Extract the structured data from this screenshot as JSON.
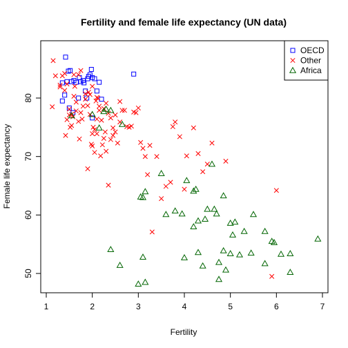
{
  "chart_data": {
    "type": "scatter",
    "title": "Fertility and female life expectancy (UN data)",
    "xlabel": "Fertility",
    "ylabel": "Female life expectancy",
    "xlim": [
      1,
      7
    ],
    "ylim": [
      50,
      85
    ],
    "xticks": [
      "1",
      "2",
      "3",
      "4",
      "5",
      "6",
      "7"
    ],
    "yticks": [
      "50",
      "60",
      "70",
      "80"
    ],
    "grid": false,
    "legend_position": "top-right",
    "series": [
      {
        "name": "OECD",
        "marker": "square",
        "color": "#0000ff",
        "x": [
          1.35,
          1.35,
          1.42,
          1.45,
          1.48,
          1.52,
          1.55,
          1.58,
          1.6,
          1.65,
          1.7,
          1.72,
          1.75,
          1.8,
          1.82,
          1.85,
          1.88,
          1.9,
          1.92,
          1.95,
          1.98,
          2.0,
          2.05,
          2.1,
          2.15,
          2.2,
          1.4,
          1.5,
          2.0,
          2.9
        ],
        "y": [
          82.6,
          79.5,
          87.0,
          82.8,
          84.6,
          84.7,
          82.8,
          77.5,
          83.0,
          82.7,
          80.0,
          83.5,
          82.8,
          83.0,
          82.6,
          81.2,
          80.0,
          83.3,
          83.7,
          84.0,
          84.9,
          76.6,
          83.3,
          81.2,
          82.7,
          79.8,
          80.5,
          78.3,
          83.5,
          84.1
        ]
      },
      {
        "name": "Other",
        "marker": "x",
        "color": "#ff0000",
        "x": [
          1.13,
          1.15,
          1.2,
          1.3,
          1.35,
          1.4,
          1.42,
          1.45,
          1.5,
          1.52,
          1.55,
          1.58,
          1.6,
          1.62,
          1.65,
          1.7,
          1.72,
          1.75,
          1.78,
          1.8,
          1.85,
          1.9,
          1.92,
          1.95,
          1.98,
          2.0,
          2.02,
          2.05,
          2.08,
          2.1,
          2.12,
          2.15,
          2.18,
          2.2,
          2.22,
          2.25,
          2.28,
          2.3,
          2.35,
          2.4,
          2.45,
          2.5,
          2.55,
          2.6,
          2.65,
          2.7,
          2.75,
          2.8,
          2.85,
          2.9,
          2.95,
          3.0,
          3.05,
          3.1,
          3.15,
          3.2,
          3.25,
          3.3,
          3.4,
          3.5,
          3.6,
          3.7,
          3.75,
          3.8,
          3.9,
          4.0,
          4.05,
          4.2,
          4.3,
          4.4,
          4.5,
          4.6,
          4.9,
          5.9,
          6.0,
          1.3,
          1.45,
          1.6,
          1.85,
          2.0,
          2.1,
          2.3,
          2.4,
          2.5,
          1.95,
          2.15,
          2.35,
          1.7,
          2.05,
          1.55,
          2.25,
          1.4,
          1.65,
          1.5,
          2.45,
          2.6,
          1.9,
          2.0,
          2.1,
          1.75
        ],
        "y": [
          78.5,
          86.4,
          83.8,
          82.2,
          83.8,
          84.2,
          73.6,
          76.3,
          78.1,
          75.0,
          77.2,
          76.8,
          80.3,
          82.0,
          79.3,
          76.0,
          73.0,
          77.5,
          76.4,
          78.6,
          79.8,
          67.9,
          81.0,
          77.2,
          72.1,
          71.8,
          75.0,
          70.7,
          79.5,
          73.9,
          80.0,
          77.9,
          70.1,
          76.2,
          72.0,
          78.2,
          74.2,
          70.9,
          65.1,
          72.9,
          73.6,
          77.1,
          72.3,
          75.9,
          77.9,
          77.9,
          75.1,
          75.0,
          75.2,
          77.6,
          77.5,
          78.3,
          72.4,
          71.4,
          70.0,
          66.9,
          71.9,
          57.1,
          70.0,
          62.8,
          64.9,
          65.6,
          75.1,
          75.9,
          73.4,
          64.4,
          70.1,
          74.9,
          70.5,
          67.4,
          68.7,
          72.3,
          69.2,
          49.5,
          64.2,
          81.9,
          82.4,
          84.0,
          80.7,
          82.0,
          80.1,
          79.1,
          76.6,
          74.2,
          80.6,
          78.6,
          77.4,
          84.0,
          74.6,
          75.3,
          73.1,
          81.3,
          77.8,
          77.1,
          74.9,
          79.4,
          78.7,
          73.9,
          76.4,
          84.7
        ]
      },
      {
        "name": "Africa",
        "marker": "triangle",
        "color": "#006400",
        "x": [
          1.55,
          2.0,
          2.15,
          2.25,
          2.3,
          2.4,
          2.4,
          2.6,
          2.65,
          3.0,
          3.05,
          3.1,
          3.15,
          3.15,
          3.5,
          3.6,
          3.8,
          3.95,
          4.05,
          4.2,
          4.2,
          4.25,
          4.3,
          4.4,
          4.45,
          4.5,
          4.6,
          4.65,
          4.7,
          4.75,
          4.75,
          4.85,
          4.9,
          5.0,
          5.0,
          5.05,
          5.1,
          5.2,
          5.3,
          5.45,
          5.5,
          5.75,
          5.75,
          5.9,
          5.95,
          6.1,
          6.3,
          6.3,
          6.9,
          4.3,
          4.0,
          3.1,
          4.85
        ],
        "y": [
          77.0,
          77.2,
          74.9,
          77.7,
          78.1,
          77.9,
          54.1,
          51.4,
          75.5,
          48.2,
          63.1,
          52.8,
          48.5,
          64.0,
          67.1,
          60.1,
          60.7,
          60.2,
          65.9,
          58.0,
          64.1,
          64.4,
          53.6,
          51.3,
          59.3,
          61.0,
          68.7,
          61.0,
          60.2,
          51.9,
          49.0,
          53.9,
          50.6,
          53.4,
          58.6,
          56.6,
          58.8,
          53.2,
          57.2,
          53.5,
          60.1,
          51.7,
          57.2,
          55.5,
          55.3,
          53.3,
          53.4,
          50.2,
          55.9,
          59.0,
          52.7,
          63.0,
          63.3
        ]
      }
    ]
  }
}
